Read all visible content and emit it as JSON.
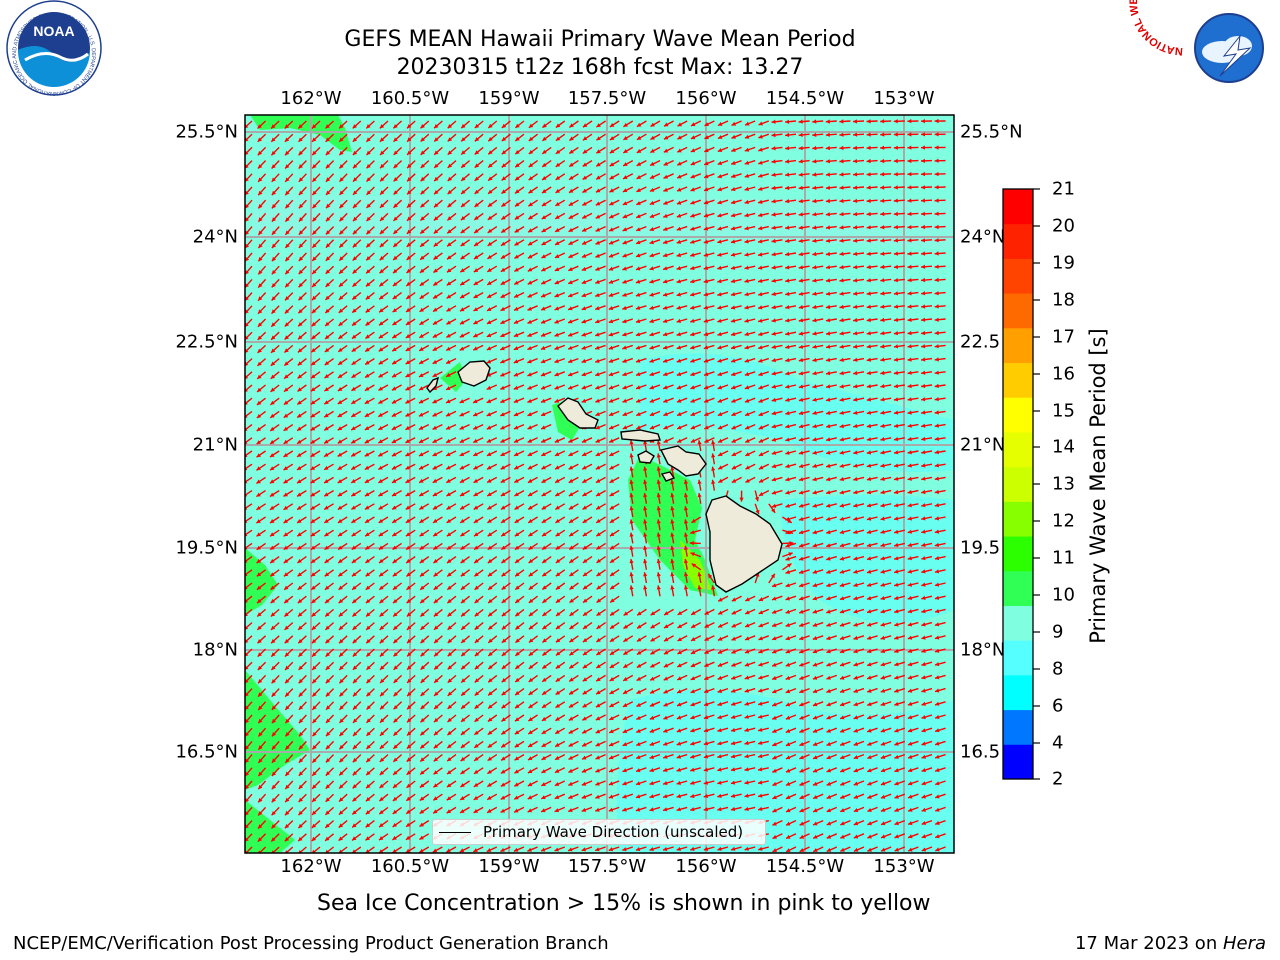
{
  "header": {
    "title_line1": "GEFS MEAN Hawaii Primary Wave Mean Period",
    "title_line2": "20230315 t12z 168h fcst   Max: 13.27"
  },
  "logos": {
    "noaa": {
      "label": "NOAA",
      "ring_text": "NATIONAL OCEANIC AND ATMOSPHERIC ADMINISTRATION · U.S. DEPARTMENT OF COMMERCE",
      "color": "#1e3f8f"
    },
    "nws": {
      "ring_text": "NATIONAL WEATHER SERVICE",
      "color": "#e00000"
    }
  },
  "map": {
    "lon_ticks": [
      "162°W",
      "160.5°W",
      "159°W",
      "157.5°W",
      "156°W",
      "154.5°W",
      "153°W"
    ],
    "lat_ticks": [
      "25.5°N",
      "24°N",
      "22.5°N",
      "21°N",
      "19.5°N",
      "18°N",
      "16.5°N"
    ],
    "right_lat_ticks": [
      "25.5°N",
      "24°N",
      "22.5",
      "21°N",
      "19.5",
      "18°N",
      "16.5"
    ],
    "background_color": "#7fffe0",
    "land_color": "#efebda",
    "arrow_color": "#ff0000",
    "grid": true
  },
  "legend": {
    "label": "Primary Wave Direction (unscaled)"
  },
  "colorbar": {
    "ticks": [
      "21",
      "20",
      "19",
      "18",
      "17",
      "16",
      "15",
      "14",
      "13",
      "12",
      "11",
      "10",
      "9",
      "8",
      "6",
      "4",
      "2"
    ],
    "label": "Primary Wave Mean Period [s]",
    "colors": [
      "#0000ff",
      "#0077ff",
      "#00ffff",
      "#55ffff",
      "#7fffe0",
      "#30ff55",
      "#2cff00",
      "#88ff00",
      "#ccff00",
      "#e6ff00",
      "#ffff00",
      "#ffcc00",
      "#ffa000",
      "#ff6a00",
      "#ff4400",
      "#ff2200",
      "#ff0000"
    ]
  },
  "note": "Sea Ice Concentration > 15% is shown in pink to yellow",
  "footer": {
    "left": "NCEP/EMC/Verification Post Processing Product Generation Branch",
    "right_prefix": "17 Mar 2023 on ",
    "right_host": "Hera"
  }
}
